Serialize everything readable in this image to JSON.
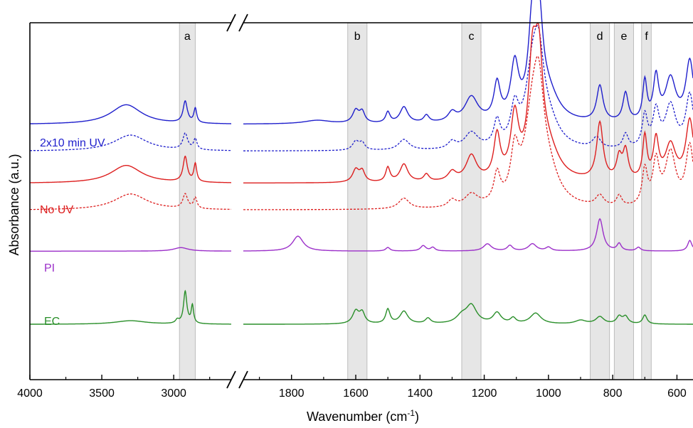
{
  "chart_data": {
    "type": "line",
    "title": "",
    "xlabel": "Wavenumber (cm",
    "xlabel_sup": "-1",
    "xlabel_close": ")",
    "ylabel": "Absorbance (a.u.)",
    "x_reversed": true,
    "axis_break": "//",
    "xlim_left": [
      4000,
      2600
    ],
    "xlim_right": [
      1950,
      550
    ],
    "ticks_left": [
      "4000",
      "3500",
      "3000"
    ],
    "ticks_right": [
      "1800",
      "1600",
      "1400",
      "1200",
      "1000",
      "800",
      "600"
    ],
    "grid": false,
    "legend": "none",
    "bands": [
      {
        "label": "a",
        "from": 2960,
        "to": 2850
      },
      {
        "label": "b",
        "from": 1625,
        "to": 1565
      },
      {
        "label": "c",
        "from": 1270,
        "to": 1210
      },
      {
        "label": "d",
        "from": 870,
        "to": 810
      },
      {
        "label": "e",
        "from": 795,
        "to": 735
      },
      {
        "label": "f",
        "from": 710,
        "to": 680
      }
    ],
    "series": [
      {
        "group": "2x10 min UV",
        "style": "solid",
        "color": "#1f1fcc",
        "baseline": 0.715,
        "peaks": [
          [
            3330,
            0.055,
            130
          ],
          [
            2920,
            0.06,
            18
          ],
          [
            2850,
            0.04,
            12
          ],
          [
            1720,
            0.01,
            50
          ],
          [
            1600,
            0.035,
            12
          ],
          [
            1580,
            0.03,
            10
          ],
          [
            1500,
            0.03,
            8
          ],
          [
            1450,
            0.045,
            15
          ],
          [
            1380,
            0.02,
            10
          ],
          [
            1300,
            0.025,
            15
          ],
          [
            1240,
            0.07,
            25
          ],
          [
            1160,
            0.1,
            12
          ],
          [
            1105,
            0.15,
            15
          ],
          [
            1050,
            0.24,
            15
          ],
          [
            1030,
            0.25,
            15
          ],
          [
            1000,
            0.07,
            40
          ],
          [
            840,
            0.1,
            12
          ],
          [
            760,
            0.08,
            10
          ],
          [
            700,
            0.11,
            8
          ],
          [
            665,
            0.12,
            10
          ],
          [
            620,
            0.12,
            20
          ],
          [
            560,
            0.17,
            15
          ]
        ]
      },
      {
        "group": "2x10 min UV",
        "style": "dashed",
        "color": "#1f1fcc",
        "baseline": 0.64,
        "peaks": [
          [
            3300,
            0.045,
            140
          ],
          [
            2920,
            0.045,
            20
          ],
          [
            2850,
            0.03,
            14
          ],
          [
            1600,
            0.025,
            12
          ],
          [
            1580,
            0.02,
            10
          ],
          [
            1450,
            0.03,
            20
          ],
          [
            1300,
            0.02,
            15
          ],
          [
            1240,
            0.045,
            25
          ],
          [
            1160,
            0.07,
            12
          ],
          [
            1105,
            0.1,
            15
          ],
          [
            1050,
            0.18,
            25
          ],
          [
            1030,
            0.19,
            20
          ],
          [
            1000,
            0.06,
            40
          ],
          [
            850,
            0.03,
            15
          ],
          [
            760,
            0.04,
            10
          ],
          [
            700,
            0.09,
            10
          ],
          [
            665,
            0.1,
            12
          ],
          [
            620,
            0.12,
            20
          ],
          [
            560,
            0.15,
            15
          ]
        ]
      },
      {
        "group": "No UV",
        "style": "solid",
        "color": "#dd1f1f",
        "baseline": 0.55,
        "peaks": [
          [
            3330,
            0.05,
            130
          ],
          [
            2920,
            0.07,
            18
          ],
          [
            2850,
            0.05,
            12
          ],
          [
            1600,
            0.035,
            12
          ],
          [
            1580,
            0.03,
            10
          ],
          [
            1500,
            0.04,
            8
          ],
          [
            1450,
            0.05,
            15
          ],
          [
            1380,
            0.02,
            10
          ],
          [
            1300,
            0.025,
            15
          ],
          [
            1240,
            0.07,
            20
          ],
          [
            1160,
            0.12,
            12
          ],
          [
            1105,
            0.17,
            15
          ],
          [
            1050,
            0.28,
            15
          ],
          [
            1030,
            0.28,
            15
          ],
          [
            1000,
            0.08,
            40
          ],
          [
            840,
            0.16,
            12
          ],
          [
            780,
            0.06,
            10
          ],
          [
            760,
            0.08,
            10
          ],
          [
            700,
            0.12,
            8
          ],
          [
            665,
            0.11,
            10
          ],
          [
            620,
            0.1,
            20
          ],
          [
            560,
            0.17,
            15
          ]
        ]
      },
      {
        "group": "No UV",
        "style": "dashed",
        "color": "#dd1f1f",
        "baseline": 0.475,
        "peaks": [
          [
            3300,
            0.045,
            140
          ],
          [
            2920,
            0.04,
            20
          ],
          [
            2850,
            0.03,
            14
          ],
          [
            1450,
            0.03,
            20
          ],
          [
            1300,
            0.02,
            15
          ],
          [
            1240,
            0.035,
            25
          ],
          [
            1160,
            0.08,
            12
          ],
          [
            1105,
            0.13,
            15
          ],
          [
            1050,
            0.22,
            30
          ],
          [
            1030,
            0.22,
            20
          ],
          [
            1000,
            0.07,
            40
          ],
          [
            840,
            0.03,
            15
          ],
          [
            780,
            0.03,
            10
          ],
          [
            700,
            0.1,
            10
          ],
          [
            665,
            0.12,
            12
          ],
          [
            620,
            0.15,
            20
          ],
          [
            560,
            0.17,
            15
          ]
        ]
      },
      {
        "group": "PI",
        "style": "solid",
        "color": "#9b2fc9",
        "baseline": 0.36,
        "peaks": [
          [
            2950,
            0.01,
            60
          ],
          [
            1780,
            0.042,
            20
          ],
          [
            1500,
            0.01,
            8
          ],
          [
            1390,
            0.015,
            10
          ],
          [
            1360,
            0.01,
            8
          ],
          [
            1190,
            0.02,
            15
          ],
          [
            1120,
            0.015,
            10
          ],
          [
            1050,
            0.02,
            15
          ],
          [
            1000,
            0.01,
            10
          ],
          [
            840,
            0.09,
            12
          ],
          [
            780,
            0.02,
            8
          ],
          [
            720,
            0.01,
            8
          ],
          [
            560,
            0.03,
            8
          ]
        ]
      },
      {
        "group": "EC",
        "style": "solid",
        "color": "#2a8f2a",
        "baseline": 0.155,
        "peaks": [
          [
            3300,
            0.01,
            130
          ],
          [
            2975,
            0.01,
            15
          ],
          [
            2920,
            0.09,
            14
          ],
          [
            2870,
            0.05,
            10
          ],
          [
            1600,
            0.035,
            12
          ],
          [
            1580,
            0.03,
            10
          ],
          [
            1500,
            0.04,
            8
          ],
          [
            1450,
            0.035,
            15
          ],
          [
            1375,
            0.015,
            10
          ],
          [
            1270,
            0.02,
            20
          ],
          [
            1240,
            0.05,
            20
          ],
          [
            1160,
            0.03,
            15
          ],
          [
            1110,
            0.015,
            10
          ],
          [
            1040,
            0.03,
            20
          ],
          [
            900,
            0.01,
            20
          ],
          [
            840,
            0.02,
            15
          ],
          [
            780,
            0.02,
            10
          ],
          [
            760,
            0.02,
            10
          ],
          [
            700,
            0.025,
            8
          ]
        ]
      }
    ],
    "annotations": [
      "2x10 min UV",
      "No UV",
      "PI",
      "EC"
    ]
  }
}
